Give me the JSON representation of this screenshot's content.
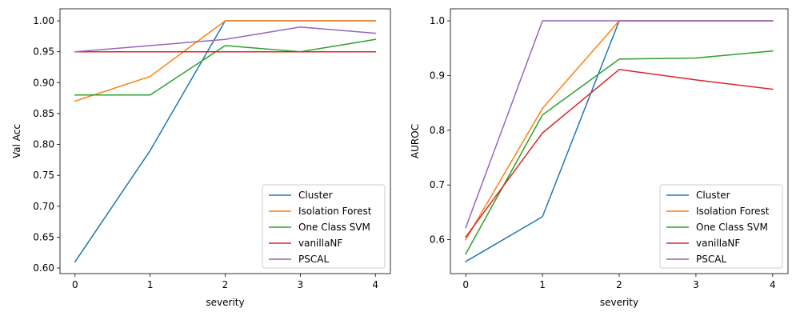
{
  "colors": {
    "Cluster": "#1f77b4",
    "Isolation Forest": "#ff7f0e",
    "One Class SVM": "#2ca02c",
    "vanillaNF": "#d62728",
    "PSCAL": "#9467bd"
  },
  "chart_data": [
    {
      "type": "line",
      "title": "",
      "xlabel": "severity",
      "ylabel": "Val Acc",
      "x": [
        0,
        1,
        2,
        3,
        4
      ],
      "xticks": [
        "0",
        "1",
        "2",
        "3",
        "4"
      ],
      "yticks": [
        "0.60",
        "0.65",
        "0.70",
        "0.75",
        "0.80",
        "0.85",
        "0.90",
        "0.95",
        "1.00"
      ],
      "ytick_values": [
        0.6,
        0.65,
        0.7,
        0.75,
        0.8,
        0.85,
        0.9,
        0.95,
        1.0
      ],
      "xlim": [
        -0.2,
        4.2
      ],
      "ylim": [
        0.591,
        1.0195
      ],
      "grid": false,
      "legend_position": "lower-right",
      "series": [
        {
          "name": "Cluster",
          "values": [
            0.61,
            0.79,
            1.0,
            1.0,
            1.0
          ]
        },
        {
          "name": "Isolation Forest",
          "values": [
            0.87,
            0.91,
            1.0,
            1.0,
            1.0
          ]
        },
        {
          "name": "One Class SVM",
          "values": [
            0.88,
            0.88,
            0.96,
            0.95,
            0.97
          ]
        },
        {
          "name": "vanillaNF",
          "values": [
            0.95,
            0.95,
            0.95,
            0.95,
            0.95
          ]
        },
        {
          "name": "PSCAL",
          "values": [
            0.95,
            0.96,
            0.97,
            0.99,
            0.98
          ]
        }
      ]
    },
    {
      "type": "line",
      "title": "",
      "xlabel": "severity",
      "ylabel": "AUROC",
      "x": [
        0,
        1,
        2,
        3,
        4
      ],
      "xticks": [
        "0",
        "1",
        "2",
        "3",
        "4"
      ],
      "yticks": [
        "0.6",
        "0.7",
        "0.8",
        "0.9",
        "1.0"
      ],
      "ytick_values": [
        0.6,
        0.7,
        0.8,
        0.9,
        1.0
      ],
      "xlim": [
        -0.2,
        4.2
      ],
      "ylim": [
        0.538,
        1.022
      ],
      "grid": false,
      "legend_position": "lower-right",
      "series": [
        {
          "name": "Cluster",
          "values": [
            0.56,
            0.642,
            1.0,
            1.0,
            1.0
          ]
        },
        {
          "name": "Isolation Forest",
          "values": [
            0.6,
            0.84,
            1.0,
            1.0,
            1.0
          ]
        },
        {
          "name": "One Class SVM",
          "values": [
            0.574,
            0.828,
            0.93,
            0.932,
            0.945
          ]
        },
        {
          "name": "vanillaNF",
          "values": [
            0.605,
            0.795,
            0.911,
            0.892,
            0.875
          ]
        },
        {
          "name": "PSCAL",
          "values": [
            0.622,
            1.0,
            1.0,
            1.0,
            1.0
          ]
        }
      ]
    }
  ]
}
